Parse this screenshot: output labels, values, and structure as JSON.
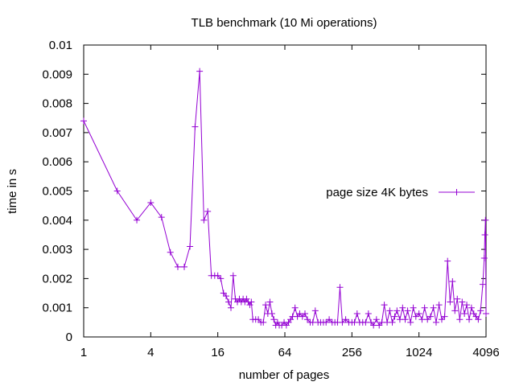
{
  "chart_data": {
    "type": "line",
    "title": "TLB benchmark (10 Mi operations)",
    "xlabel": "number of pages",
    "ylabel": "time in s",
    "x_scale": "log2",
    "xlim": [
      1,
      4096
    ],
    "ylim": [
      0,
      0.01
    ],
    "x_ticks": [
      {
        "value": 1,
        "label": "1"
      },
      {
        "value": 4,
        "label": "4"
      },
      {
        "value": 16,
        "label": "16"
      },
      {
        "value": 64,
        "label": "64"
      },
      {
        "value": 256,
        "label": "256"
      },
      {
        "value": 1024,
        "label": "1024"
      },
      {
        "value": 4096,
        "label": "4096"
      }
    ],
    "y_ticks": [
      {
        "value": 0,
        "label": "0"
      },
      {
        "value": 0.001,
        "label": "0.001"
      },
      {
        "value": 0.002,
        "label": "0.002"
      },
      {
        "value": 0.003,
        "label": "0.003"
      },
      {
        "value": 0.004,
        "label": "0.004"
      },
      {
        "value": 0.005,
        "label": "0.005"
      },
      {
        "value": 0.006,
        "label": "0.006"
      },
      {
        "value": 0.007,
        "label": "0.007"
      },
      {
        "value": 0.008,
        "label": "0.008"
      },
      {
        "value": 0.009,
        "label": "0.009"
      },
      {
        "value": 0.01,
        "label": "0.01"
      }
    ],
    "grid": false,
    "legend_position": "right-middle",
    "series": [
      {
        "name": "page size 4K bytes",
        "color": "#9400d3",
        "marker": "plus",
        "points": [
          [
            1,
            0.0074
          ],
          [
            2,
            0.005
          ],
          [
            3,
            0.004
          ],
          [
            4,
            0.0046
          ],
          [
            5,
            0.0041
          ],
          [
            6,
            0.0029
          ],
          [
            7,
            0.0024
          ],
          [
            8,
            0.0024
          ],
          [
            9,
            0.0031
          ],
          [
            10,
            0.0072
          ],
          [
            11,
            0.0091
          ],
          [
            12,
            0.004
          ],
          [
            13,
            0.0043
          ],
          [
            14,
            0.0021
          ],
          [
            15,
            0.0021
          ],
          [
            16,
            0.0021
          ],
          [
            17,
            0.002
          ],
          [
            18,
            0.0015
          ],
          [
            19,
            0.0014
          ],
          [
            20,
            0.0012
          ],
          [
            21,
            0.001
          ],
          [
            22,
            0.0021
          ],
          [
            23,
            0.0013
          ],
          [
            24,
            0.0012
          ],
          [
            25,
            0.0013
          ],
          [
            26,
            0.0012
          ],
          [
            27,
            0.0013
          ],
          [
            28,
            0.0012
          ],
          [
            29,
            0.0013
          ],
          [
            30,
            0.0012
          ],
          [
            31,
            0.0011
          ],
          [
            32,
            0.0012
          ],
          [
            33,
            0.0006
          ],
          [
            35,
            0.0006
          ],
          [
            37,
            0.0006
          ],
          [
            39,
            0.0005
          ],
          [
            41,
            0.0005
          ],
          [
            43,
            0.0011
          ],
          [
            45,
            0.0008
          ],
          [
            47,
            0.0012
          ],
          [
            49,
            0.0008
          ],
          [
            51,
            0.0006
          ],
          [
            53,
            0.0004
          ],
          [
            55,
            0.0005
          ],
          [
            57,
            0.0004
          ],
          [
            60,
            0.0004
          ],
          [
            63,
            0.0005
          ],
          [
            66,
            0.0004
          ],
          [
            69,
            0.0005
          ],
          [
            72,
            0.0006
          ],
          [
            75,
            0.0007
          ],
          [
            79,
            0.001
          ],
          [
            83,
            0.0007
          ],
          [
            87,
            0.0008
          ],
          [
            92,
            0.0007
          ],
          [
            97,
            0.0008
          ],
          [
            102,
            0.0006
          ],
          [
            108,
            0.0005
          ],
          [
            114,
            0.0005
          ],
          [
            120,
            0.0009
          ],
          [
            127,
            0.0005
          ],
          [
            134,
            0.0005
          ],
          [
            142,
            0.0005
          ],
          [
            150,
            0.0005
          ],
          [
            160,
            0.0006
          ],
          [
            170,
            0.0005
          ],
          [
            180,
            0.0005
          ],
          [
            190,
            0.0005
          ],
          [
            200,
            0.0017
          ],
          [
            210,
            0.0005
          ],
          [
            225,
            0.0006
          ],
          [
            240,
            0.0005
          ],
          [
            256,
            0.0005
          ],
          [
            270,
            0.0005
          ],
          [
            285,
            0.0008
          ],
          [
            300,
            0.0005
          ],
          [
            320,
            0.0005
          ],
          [
            340,
            0.0005
          ],
          [
            360,
            0.0008
          ],
          [
            380,
            0.0005
          ],
          [
            400,
            0.0004
          ],
          [
            425,
            0.0006
          ],
          [
            450,
            0.0004
          ],
          [
            475,
            0.0005
          ],
          [
            500,
            0.0011
          ],
          [
            530,
            0.0005
          ],
          [
            560,
            0.0009
          ],
          [
            590,
            0.0005
          ],
          [
            620,
            0.0007
          ],
          [
            650,
            0.0009
          ],
          [
            690,
            0.0006
          ],
          [
            730,
            0.001
          ],
          [
            770,
            0.0006
          ],
          [
            810,
            0.0009
          ],
          [
            860,
            0.0005
          ],
          [
            910,
            0.001
          ],
          [
            960,
            0.0007
          ],
          [
            1024,
            0.0008
          ],
          [
            1090,
            0.0006
          ],
          [
            1150,
            0.001
          ],
          [
            1220,
            0.0006
          ],
          [
            1300,
            0.0007
          ],
          [
            1380,
            0.001
          ],
          [
            1460,
            0.0005
          ],
          [
            1550,
            0.0011
          ],
          [
            1640,
            0.0006
          ],
          [
            1740,
            0.0007
          ],
          [
            1850,
            0.0026
          ],
          [
            1950,
            0.0012
          ],
          [
            2048,
            0.0019
          ],
          [
            2150,
            0.0009
          ],
          [
            2260,
            0.0013
          ],
          [
            2380,
            0.0006
          ],
          [
            2500,
            0.0012
          ],
          [
            2620,
            0.0008
          ],
          [
            2750,
            0.0011
          ],
          [
            2890,
            0.0006
          ],
          [
            3030,
            0.001
          ],
          [
            3180,
            0.0008
          ],
          [
            3330,
            0.0007
          ],
          [
            3490,
            0.0006
          ],
          [
            3660,
            0.0009
          ],
          [
            3830,
            0.0018
          ],
          [
            3950,
            0.0027
          ],
          [
            4000,
            0.0035
          ],
          [
            4050,
            0.004
          ],
          [
            4096,
            0.0008
          ]
        ]
      }
    ]
  }
}
